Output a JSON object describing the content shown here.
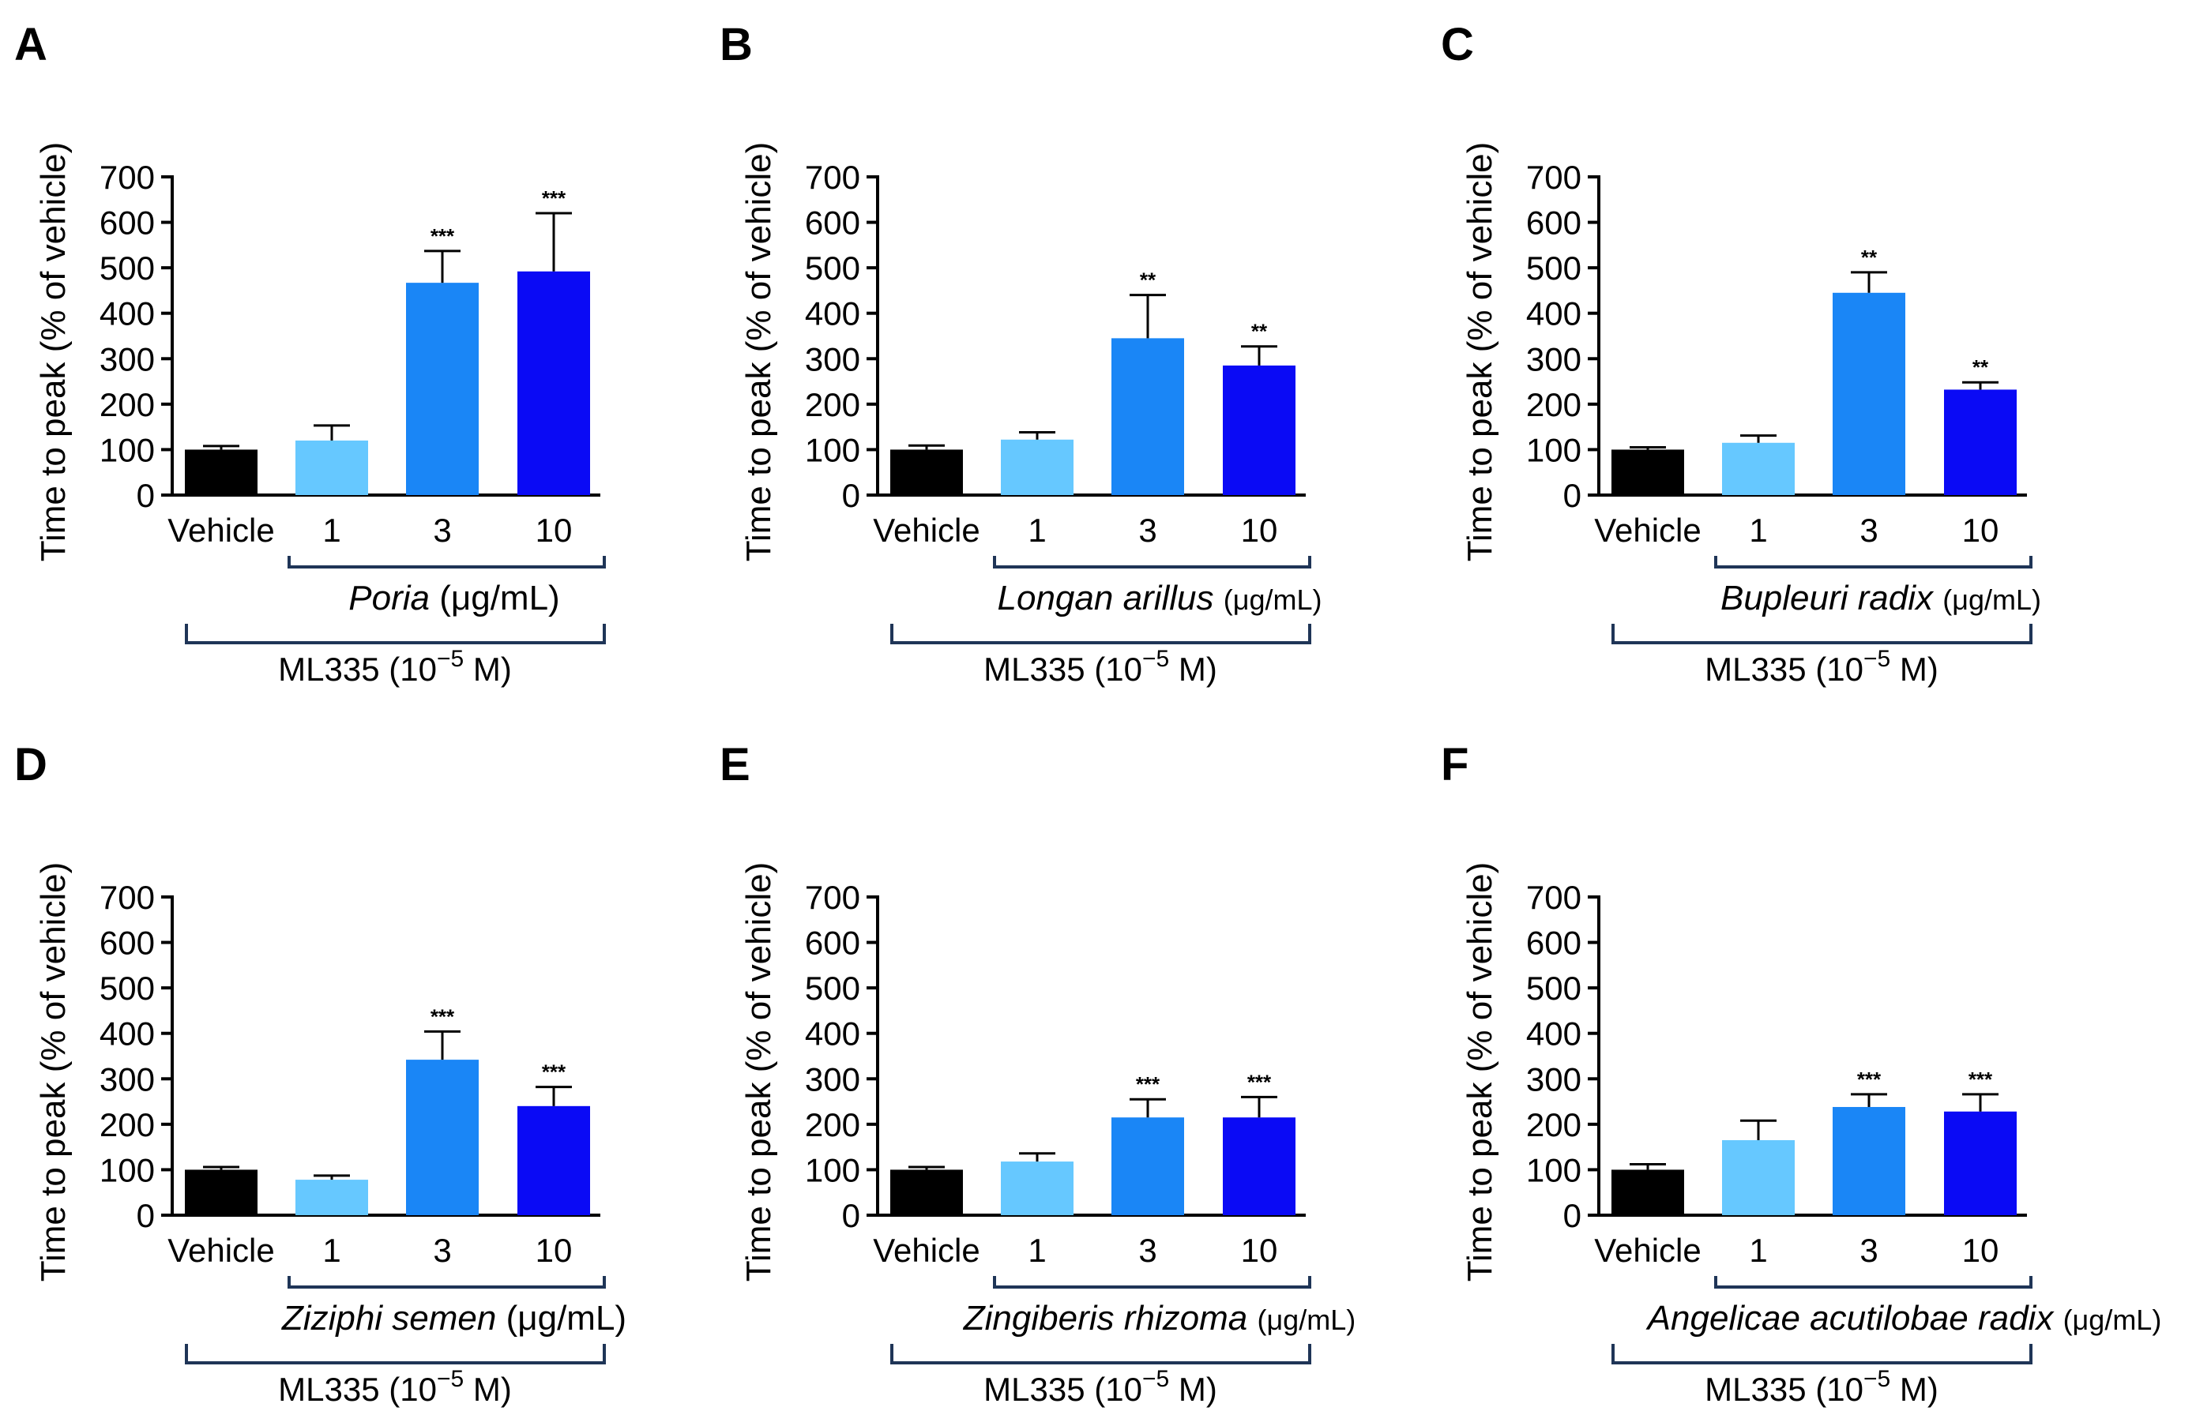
{
  "ylabel": "Time to peak (% of vehicle)",
  "yticks": [
    "0",
    "100",
    "200",
    "300",
    "400",
    "500",
    "600",
    "700"
  ],
  "categories": [
    "Vehicle",
    "1",
    "3",
    "10"
  ],
  "unit": "(μg/mL)",
  "ml335": {
    "prefix": "ML335 (10",
    "exp": "−5",
    "suffix": " M)"
  },
  "colors": [
    "#000000",
    "#66c8ff",
    "#1a86f6",
    "#0a0af5"
  ],
  "chart_data": [
    {
      "type": "bar",
      "label": "A",
      "herb": "Poria",
      "categories": [
        "Vehicle",
        "1",
        "3",
        "10"
      ],
      "values": [
        100,
        120,
        467,
        492
      ],
      "errors": [
        8,
        33,
        70,
        128
      ],
      "significance": [
        "",
        "",
        "***",
        "***"
      ],
      "ylabel": "Time to peak (% of vehicle)",
      "ylim": [
        0,
        700
      ]
    },
    {
      "type": "bar",
      "label": "B",
      "herb": "Longan arillus",
      "categories": [
        "Vehicle",
        "1",
        "3",
        "10"
      ],
      "values": [
        100,
        122,
        345,
        285
      ],
      "errors": [
        9,
        16,
        95,
        42
      ],
      "significance": [
        "",
        "",
        "**",
        "**"
      ],
      "ylabel": "Time to peak (% of vehicle)",
      "ylim": [
        0,
        700
      ]
    },
    {
      "type": "bar",
      "label": "C",
      "herb": "Bupleuri radix",
      "categories": [
        "Vehicle",
        "1",
        "3",
        "10"
      ],
      "values": [
        100,
        115,
        445,
        232
      ],
      "errors": [
        5,
        16,
        45,
        16
      ],
      "significance": [
        "",
        "",
        "**",
        "**"
      ],
      "ylabel": "Time to peak (% of vehicle)",
      "ylim": [
        0,
        700
      ]
    },
    {
      "type": "bar",
      "label": "D",
      "herb": "Ziziphi semen",
      "categories": [
        "Vehicle",
        "1",
        "3",
        "10"
      ],
      "values": [
        100,
        78,
        342,
        240
      ],
      "errors": [
        6,
        9,
        62,
        42
      ],
      "significance": [
        "",
        "",
        "***",
        "***"
      ],
      "ylabel": "Time to peak (% of vehicle)",
      "ylim": [
        0,
        700
      ]
    },
    {
      "type": "bar",
      "label": "E",
      "herb": "Zingiberis rhizoma",
      "categories": [
        "Vehicle",
        "1",
        "3",
        "10"
      ],
      "values": [
        100,
        118,
        215,
        215
      ],
      "errors": [
        6,
        18,
        40,
        45
      ],
      "significance": [
        "",
        "",
        "***",
        "***"
      ],
      "ylabel": "Time to peak (% of vehicle)",
      "ylim": [
        0,
        700
      ]
    },
    {
      "type": "bar",
      "label": "F",
      "herb": "Angelicae acutilobae radix",
      "categories": [
        "Vehicle",
        "1",
        "3",
        "10"
      ],
      "values": [
        100,
        165,
        238,
        228
      ],
      "errors": [
        12,
        43,
        28,
        38
      ],
      "significance": [
        "",
        "",
        "***",
        "***"
      ],
      "ylabel": "Time to peak (% of vehicle)",
      "ylim": [
        0,
        700
      ]
    }
  ]
}
